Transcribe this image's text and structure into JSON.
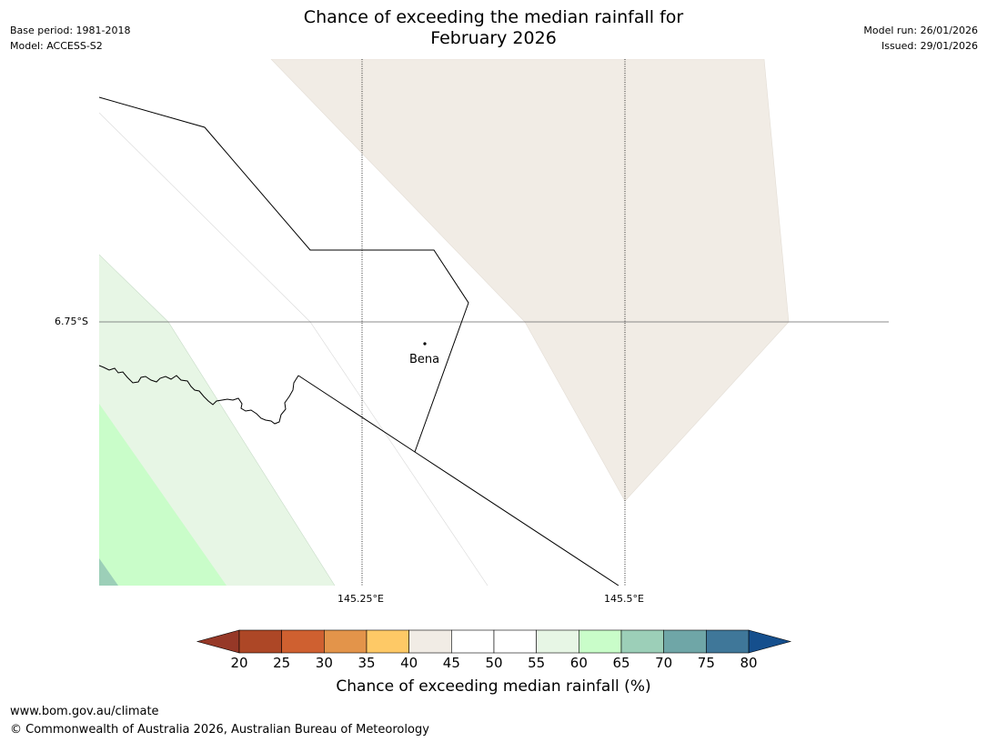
{
  "header": {
    "title_line1": "Chance of exceeding the median rainfall for",
    "title_line2": "February 2026",
    "base_period": "Base period: 1981-2018",
    "model": "Model: ACCESS-S2",
    "model_run": "Model run: 26/01/2026",
    "issued": "Issued: 29/01/2026"
  },
  "map": {
    "lat_label": "6.75°S",
    "lon_labels": [
      "145.25°E",
      "145.5°E"
    ],
    "place": "Bena"
  },
  "colorbar": {
    "label": "Chance of exceeding median rainfall (%)",
    "ticks": [
      "20",
      "25",
      "30",
      "35",
      "40",
      "45",
      "50",
      "55",
      "60",
      "65",
      "70",
      "75",
      "80"
    ],
    "colors": [
      "#ad4726",
      "#cf6030",
      "#e3944a",
      "#fec966",
      "#f1ece5",
      "#ffffff",
      "#ffffff",
      "#e7f6e5",
      "#c9fdc9",
      "#9ccfb8",
      "#6fa6a7",
      "#3f7799"
    ],
    "under_color": "#963827",
    "over_color": "#154f8d"
  },
  "footer": {
    "url": "www.bom.gov.au/climate",
    "copyright": "© Commonwealth of Australia 2026, Australian Bureau of Meteorology"
  }
}
